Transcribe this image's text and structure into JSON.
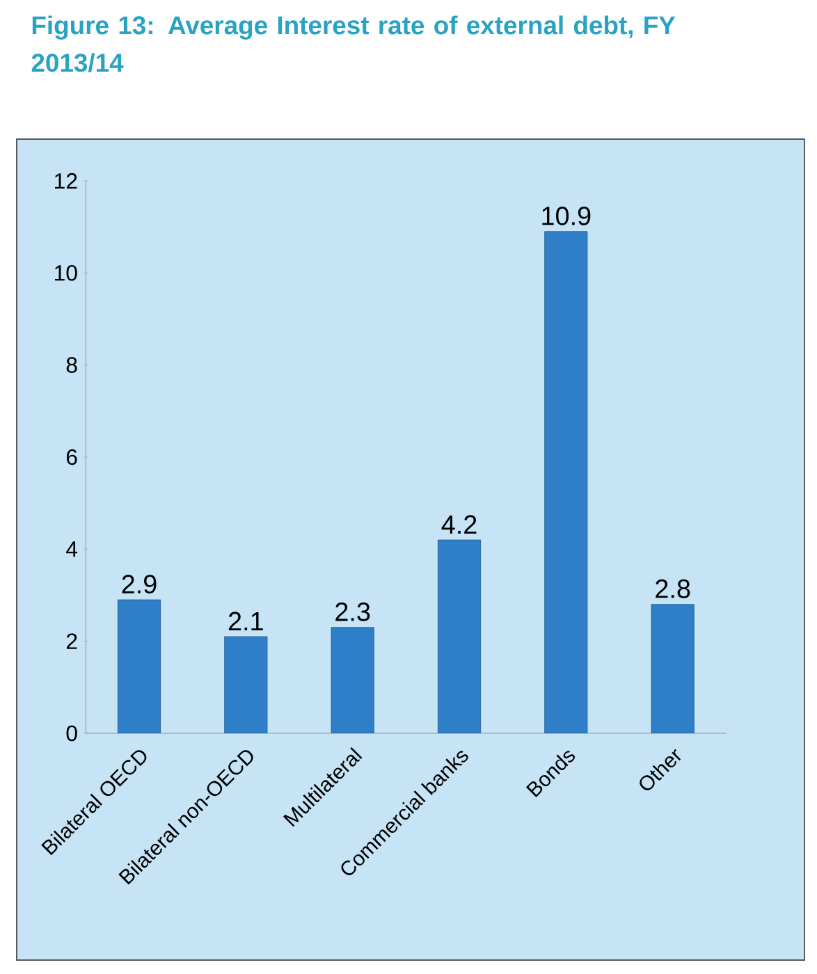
{
  "chart_data": {
    "type": "bar",
    "title": "Figure 13: Average Interest rate of external debt, FY 2013/14",
    "categories": [
      "Bilateral OECD",
      "Bilateral non-OECD",
      "Multilateral",
      "Commercial banks",
      "Bonds",
      "Other"
    ],
    "values": [
      2.9,
      2.1,
      2.3,
      4.2,
      10.9,
      2.8
    ],
    "color": "#2f7fc8",
    "ylim": [
      0,
      12
    ],
    "yticks": [
      0,
      2,
      4,
      6,
      8,
      10,
      12
    ],
    "data_labels": true
  }
}
